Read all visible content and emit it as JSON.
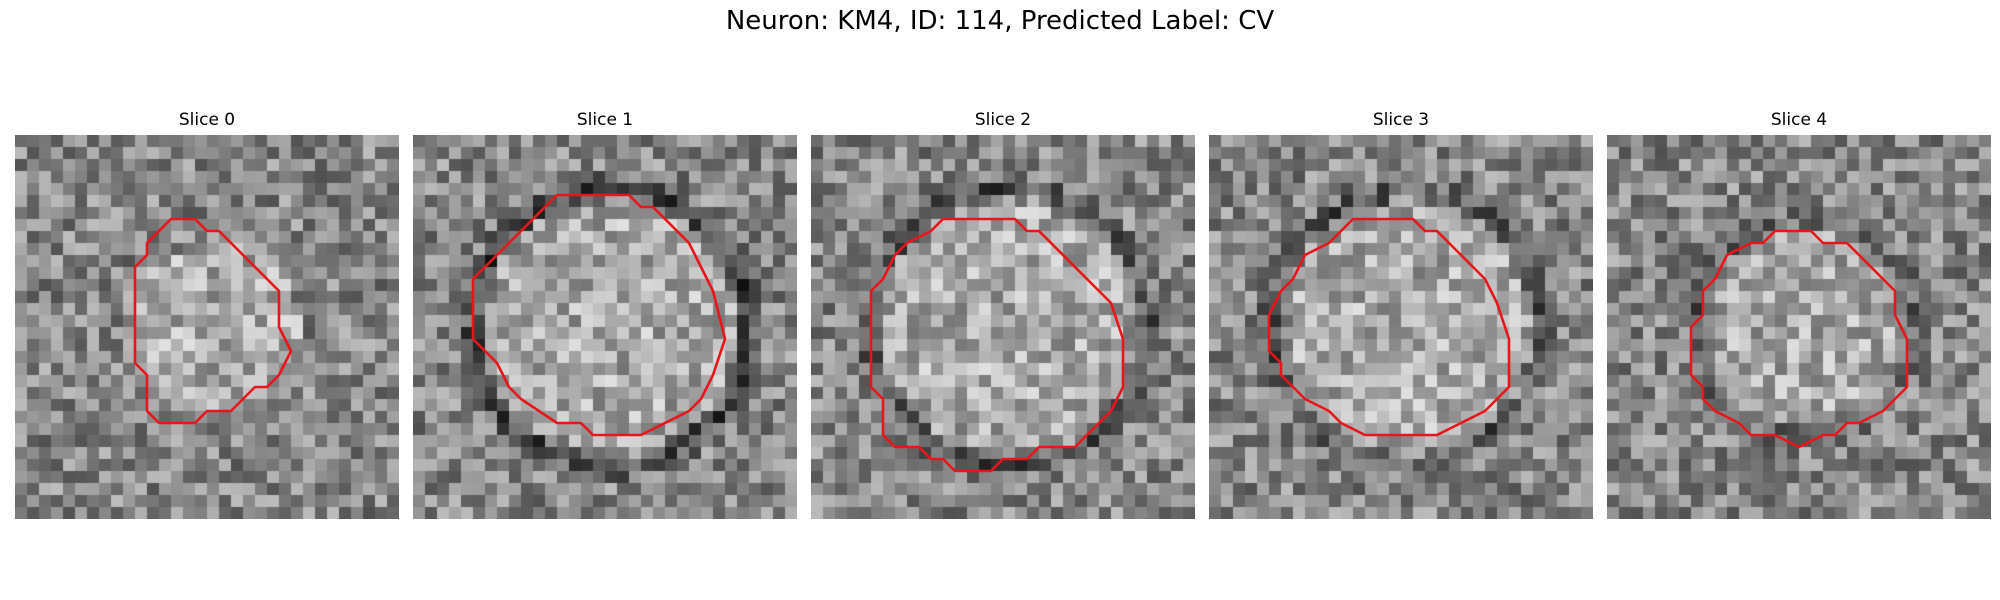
{
  "suptitle": "Neuron: KM4, ID: 114, Predicted Label: CV",
  "slices": [
    {
      "title": "Slice 0",
      "seed": 11,
      "blob_radius": 0.22,
      "ring_strength": 0.0,
      "contour": [
        [
          14,
          7
        ],
        [
          15,
          7
        ],
        [
          16,
          8
        ],
        [
          17,
          8
        ],
        [
          20,
          11
        ],
        [
          21,
          12
        ],
        [
          22,
          13
        ],
        [
          22,
          16
        ],
        [
          23,
          18
        ],
        [
          22,
          20
        ],
        [
          21,
          21
        ],
        [
          20,
          21
        ],
        [
          19,
          22
        ],
        [
          18,
          23
        ],
        [
          16,
          23
        ],
        [
          15,
          24
        ],
        [
          12,
          24
        ],
        [
          11,
          23
        ],
        [
          11,
          20
        ],
        [
          10,
          19
        ],
        [
          10,
          11
        ],
        [
          11,
          10
        ],
        [
          11,
          9
        ],
        [
          13,
          7
        ]
      ]
    },
    {
      "title": "Slice 1",
      "seed": 23,
      "blob_radius": 0.34,
      "ring_strength": 0.9,
      "contour": [
        [
          13,
          5
        ],
        [
          18,
          5
        ],
        [
          19,
          6
        ],
        [
          20,
          6
        ],
        [
          21,
          7
        ],
        [
          22,
          8
        ],
        [
          23,
          9
        ],
        [
          24,
          11
        ],
        [
          25,
          13
        ],
        [
          26,
          17
        ],
        [
          25,
          20
        ],
        [
          24,
          22
        ],
        [
          23,
          23
        ],
        [
          21,
          24
        ],
        [
          19,
          25
        ],
        [
          15,
          25
        ],
        [
          14,
          24
        ],
        [
          12,
          24
        ],
        [
          9,
          22
        ],
        [
          8,
          21
        ],
        [
          7,
          19
        ],
        [
          5,
          17
        ],
        [
          5,
          12
        ],
        [
          6,
          11
        ],
        [
          7,
          10
        ],
        [
          8,
          9
        ],
        [
          10,
          7
        ],
        [
          11,
          6
        ],
        [
          12,
          5
        ]
      ]
    },
    {
      "title": "Slice 2",
      "seed": 37,
      "blob_radius": 0.34,
      "ring_strength": 0.75,
      "contour": [
        [
          12,
          7
        ],
        [
          17,
          7
        ],
        [
          18,
          8
        ],
        [
          19,
          8
        ],
        [
          20,
          9
        ],
        [
          23,
          12
        ],
        [
          25,
          14
        ],
        [
          26,
          17
        ],
        [
          26,
          21
        ],
        [
          25,
          23
        ],
        [
          23,
          25
        ],
        [
          22,
          26
        ],
        [
          19,
          26
        ],
        [
          18,
          27
        ],
        [
          16,
          27
        ],
        [
          15,
          28
        ],
        [
          12,
          28
        ],
        [
          11,
          27
        ],
        [
          10,
          27
        ],
        [
          9,
          26
        ],
        [
          7,
          26
        ],
        [
          6,
          25
        ],
        [
          6,
          22
        ],
        [
          5,
          21
        ],
        [
          5,
          13
        ],
        [
          6,
          12
        ],
        [
          7,
          10
        ],
        [
          8,
          9
        ],
        [
          10,
          8
        ],
        [
          11,
          7
        ]
      ]
    },
    {
      "title": "Slice 3",
      "seed": 51,
      "blob_radius": 0.33,
      "ring_strength": 0.7,
      "contour": [
        [
          12,
          7
        ],
        [
          17,
          7
        ],
        [
          18,
          8
        ],
        [
          19,
          8
        ],
        [
          20,
          9
        ],
        [
          21,
          10
        ],
        [
          22,
          11
        ],
        [
          23,
          12
        ],
        [
          24,
          14
        ],
        [
          25,
          17
        ],
        [
          25,
          21
        ],
        [
          24,
          22
        ],
        [
          23,
          23
        ],
        [
          21,
          24
        ],
        [
          19,
          25
        ],
        [
          13,
          25
        ],
        [
          11,
          24
        ],
        [
          10,
          23
        ],
        [
          8,
          22
        ],
        [
          7,
          21
        ],
        [
          6,
          20
        ],
        [
          6,
          19
        ],
        [
          5,
          18
        ],
        [
          5,
          15
        ],
        [
          6,
          13
        ],
        [
          7,
          12
        ],
        [
          8,
          10
        ],
        [
          10,
          9
        ],
        [
          11,
          8
        ]
      ]
    },
    {
      "title": "Slice 4",
      "seed": 67,
      "blob_radius": 0.26,
      "ring_strength": 0.55,
      "contour": [
        [
          15,
          8
        ],
        [
          17,
          8
        ],
        [
          18,
          9
        ],
        [
          20,
          9
        ],
        [
          21,
          10
        ],
        [
          22,
          11
        ],
        [
          23,
          12
        ],
        [
          24,
          13
        ],
        [
          24,
          15
        ],
        [
          25,
          17
        ],
        [
          25,
          21
        ],
        [
          24,
          22
        ],
        [
          23,
          23
        ],
        [
          21,
          24
        ],
        [
          20,
          24
        ],
        [
          19,
          25
        ],
        [
          18,
          25
        ],
        [
          16,
          26
        ],
        [
          14,
          25
        ],
        [
          12,
          25
        ],
        [
          11,
          24
        ],
        [
          9,
          23
        ],
        [
          8,
          22
        ],
        [
          8,
          21
        ],
        [
          7,
          20
        ],
        [
          7,
          16
        ],
        [
          8,
          15
        ],
        [
          8,
          13
        ],
        [
          9,
          12
        ],
        [
          10,
          10
        ],
        [
          12,
          9
        ],
        [
          13,
          9
        ],
        [
          14,
          8
        ]
      ]
    }
  ]
}
